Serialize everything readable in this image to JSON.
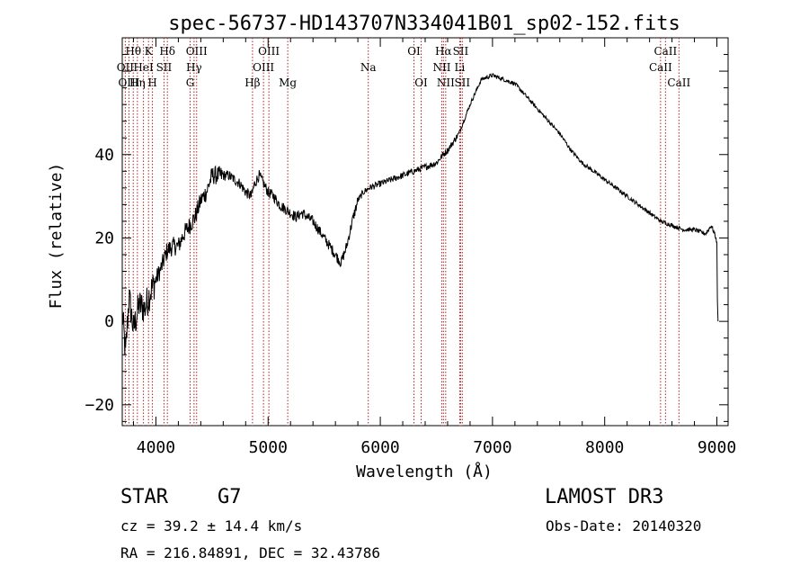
{
  "chart_data": {
    "type": "line",
    "title": "spec-56737-HD143707N334041B01_sp02-152.fits",
    "xlabel": "Wavelength (Å)",
    "ylabel": "Flux (relative)",
    "xlim": [
      3700,
      9100
    ],
    "ylim": [
      -25,
      68
    ],
    "xticks": [
      4000,
      5000,
      6000,
      7000,
      8000,
      9000
    ],
    "yticks": [
      -20,
      0,
      20,
      40
    ],
    "xtick_labels": [
      "4000",
      "5000",
      "6000",
      "7000",
      "8000",
      "9000"
    ],
    "ytick_labels": [
      "−20",
      "0",
      "20",
      "40"
    ],
    "line_color": "#000000",
    "marker_color": "#b22222",
    "spectrum_anchors": [
      [
        3700,
        2
      ],
      [
        3730,
        -8
      ],
      [
        3760,
        6
      ],
      [
        3800,
        -2
      ],
      [
        3850,
        4
      ],
      [
        3900,
        3
      ],
      [
        3950,
        7
      ],
      [
        4000,
        10
      ],
      [
        4050,
        13
      ],
      [
        4100,
        17
      ],
      [
        4150,
        18
      ],
      [
        4200,
        18
      ],
      [
        4250,
        21
      ],
      [
        4300,
        23
      ],
      [
        4350,
        25
      ],
      [
        4400,
        29
      ],
      [
        4450,
        31
      ],
      [
        4500,
        35
      ],
      [
        4550,
        35
      ],
      [
        4600,
        35
      ],
      [
        4650,
        35
      ],
      [
        4700,
        34
      ],
      [
        4750,
        33
      ],
      [
        4800,
        31
      ],
      [
        4850,
        30
      ],
      [
        4880,
        33
      ],
      [
        4920,
        35
      ],
      [
        4960,
        33
      ],
      [
        5000,
        31
      ],
      [
        5050,
        30
      ],
      [
        5100,
        28
      ],
      [
        5150,
        27
      ],
      [
        5200,
        26
      ],
      [
        5250,
        25
      ],
      [
        5300,
        26
      ],
      [
        5350,
        25
      ],
      [
        5400,
        24
      ],
      [
        5450,
        22
      ],
      [
        5500,
        20
      ],
      [
        5550,
        18
      ],
      [
        5600,
        16
      ],
      [
        5650,
        14
      ],
      [
        5700,
        18
      ],
      [
        5750,
        24
      ],
      [
        5800,
        29
      ],
      [
        5850,
        31
      ],
      [
        5900,
        32
      ],
      [
        6000,
        33
      ],
      [
        6100,
        34
      ],
      [
        6200,
        35
      ],
      [
        6300,
        36
      ],
      [
        6400,
        37
      ],
      [
        6500,
        38
      ],
      [
        6560,
        40
      ],
      [
        6600,
        41
      ],
      [
        6700,
        45
      ],
      [
        6800,
        52
      ],
      [
        6900,
        58
      ],
      [
        7000,
        59
      ],
      [
        7100,
        58
      ],
      [
        7200,
        57
      ],
      [
        7300,
        54
      ],
      [
        7400,
        51
      ],
      [
        7500,
        48
      ],
      [
        7600,
        45
      ],
      [
        7700,
        41
      ],
      [
        7800,
        38
      ],
      [
        7900,
        36
      ],
      [
        8000,
        34
      ],
      [
        8100,
        32
      ],
      [
        8200,
        30
      ],
      [
        8300,
        28
      ],
      [
        8400,
        26
      ],
      [
        8500,
        24
      ],
      [
        8600,
        23
      ],
      [
        8700,
        22
      ],
      [
        8800,
        22
      ],
      [
        8900,
        21
      ],
      [
        8950,
        23
      ],
      [
        8980,
        21
      ],
      [
        9000,
        19
      ],
      [
        9005,
        5
      ],
      [
        9010,
        0
      ]
    ],
    "lines": [
      {
        "label": "Hθ",
        "wave": 3798,
        "row": 0
      },
      {
        "label": "OII",
        "wave": 3727,
        "row": 1
      },
      {
        "label": "OIII",
        "wave": 3760,
        "row": 2
      },
      {
        "label": "K",
        "wave": 3934,
        "row": 0
      },
      {
        "label": "HeI",
        "wave": 3889,
        "row": 1
      },
      {
        "label": "Hη",
        "wave": 3835,
        "row": 2
      },
      {
        "label": "H",
        "wave": 3969,
        "row": 2
      },
      {
        "label": "SII",
        "wave": 4072,
        "row": 1
      },
      {
        "label": "Hδ",
        "wave": 4102,
        "row": 0
      },
      {
        "label": "OIII",
        "wave": 4363,
        "row": 0
      },
      {
        "label": "Hγ",
        "wave": 4340,
        "row": 1
      },
      {
        "label": "G",
        "wave": 4305,
        "row": 2
      },
      {
        "label": "Hβ",
        "wave": 4861,
        "row": 2
      },
      {
        "label": "OIII",
        "wave": 5007,
        "row": 0
      },
      {
        "label": "OIII",
        "wave": 4959,
        "row": 1
      },
      {
        "label": "Mg",
        "wave": 5175,
        "row": 2
      },
      {
        "label": "Na",
        "wave": 5893,
        "row": 1
      },
      {
        "label": "OI",
        "wave": 6300,
        "row": 0
      },
      {
        "label": "OI",
        "wave": 6364,
        "row": 2
      },
      {
        "label": "Hα",
        "wave": 6563,
        "row": 0
      },
      {
        "label": "SII",
        "wave": 6716,
        "row": 0
      },
      {
        "label": "NII",
        "wave": 6548,
        "row": 1
      },
      {
        "label": "Li",
        "wave": 6708,
        "row": 1
      },
      {
        "label": "NII",
        "wave": 6583,
        "row": 2
      },
      {
        "label": "SII",
        "wave": 6731,
        "row": 2
      },
      {
        "label": "CaII",
        "wave": 8542,
        "row": 0
      },
      {
        "label": "CaII",
        "wave": 8498,
        "row": 1
      },
      {
        "label": "CaII",
        "wave": 8662,
        "row": 2
      }
    ]
  },
  "info": {
    "object_type": "STAR",
    "subclass": "G7",
    "survey": "LAMOST DR3",
    "cz": "cz = 39.2 ± 14.4 km/s",
    "obs_date": "Obs-Date: 20140320",
    "coords": "RA = 216.84891, DEC =  32.43786"
  }
}
